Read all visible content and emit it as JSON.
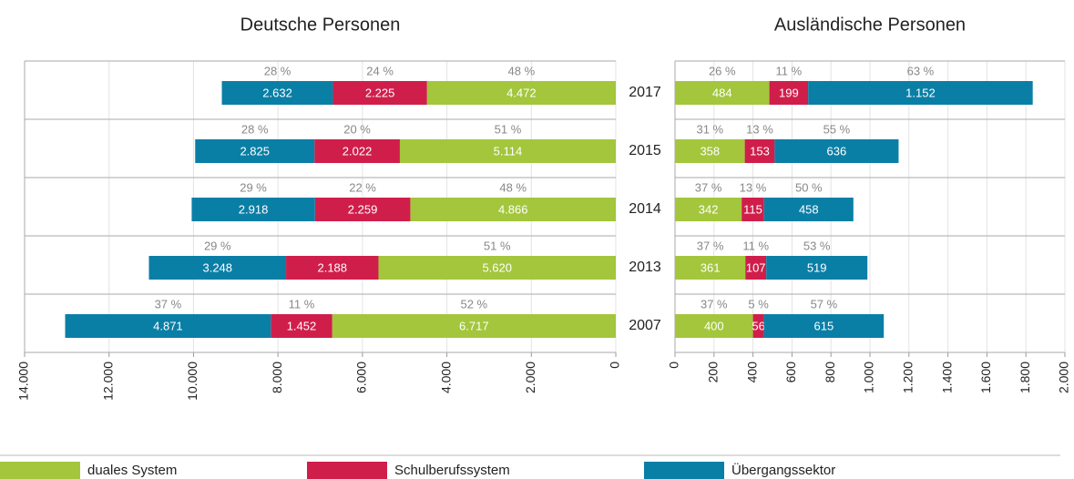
{
  "chart_data": [
    {
      "type": "stacked_barh",
      "title": "Deutsche Personen",
      "categories": [
        "2017",
        "2015",
        "2014",
        "2013",
        "2007"
      ],
      "x_reversed": true,
      "xlim": [
        0,
        14000
      ],
      "xticks": [
        0,
        {
          "value": 2000,
          "label": "2.000"
        },
        {
          "value": 4000,
          "label": "4.000"
        },
        {
          "value": 6000,
          "label": "6.000"
        },
        {
          "value": 8000,
          "label": "8.000"
        },
        {
          "value": 10000,
          "label": "10.000"
        },
        {
          "value": 12000,
          "label": "12.000"
        },
        {
          "value": 14000,
          "label": "14.000"
        }
      ],
      "grid": true,
      "series": [
        {
          "name": "duales System",
          "color": "#a3c63c",
          "values": [
            4472,
            5114,
            4866,
            5620,
            6717
          ],
          "value_labels": [
            "4.472",
            "5.114",
            "4.866",
            "5.620",
            "6.717"
          ],
          "share_labels": [
            "48 %",
            "51 %",
            "48 %",
            "51 %",
            "52 %"
          ]
        },
        {
          "name": "Schulberufssystem",
          "color": "#d01e4b",
          "values": [
            2225,
            2022,
            2259,
            2188,
            1452
          ],
          "value_labels": [
            "2.225",
            "2.022",
            "2.259",
            "2.188",
            "1.452"
          ],
          "share_labels": [
            "24 %",
            "20 %",
            "22 %",
            "",
            "11 %"
          ]
        },
        {
          "name": "Übergangssektor",
          "color": "#0a7fa6",
          "values": [
            2632,
            2825,
            2918,
            3248,
            4871
          ],
          "value_labels": [
            "2.632",
            "2.825",
            "2.918",
            "3.248",
            "4.871"
          ],
          "share_labels": [
            "28 %",
            "28 %",
            "29 %",
            "29 %",
            "37 %"
          ]
        }
      ]
    },
    {
      "type": "stacked_barh",
      "title": "Ausländische Personen",
      "x_reversed": false,
      "xlim": [
        0,
        2000
      ],
      "xticks": [
        0,
        200,
        400,
        600,
        800,
        {
          "value": 1000,
          "label": "1.000"
        },
        {
          "value": 1200,
          "label": "1.200"
        },
        {
          "value": 1400,
          "label": "1.400"
        },
        {
          "value": 1600,
          "label": "1.600"
        },
        {
          "value": 1800,
          "label": "1.800"
        },
        {
          "value": 2000,
          "label": "2.000"
        }
      ],
      "grid": true,
      "series": [
        {
          "name": "duales System",
          "color": "#a3c63c",
          "values": [
            484,
            358,
            342,
            361,
            400
          ],
          "share_labels": [
            "26 %",
            "31 %",
            "37 %",
            "37 %",
            "37 %"
          ]
        },
        {
          "name": "Schulberufssystem",
          "color": "#d01e4b",
          "values": [
            199,
            153,
            115,
            107,
            56
          ],
          "share_labels": [
            "11 %",
            "13 %",
            "13 %",
            "11 %",
            "5 %"
          ]
        },
        {
          "name": "Übergangssektor",
          "color": "#0a7fa6",
          "values": [
            1152,
            636,
            458,
            519,
            615
          ],
          "value_labels": [
            "1.152",
            "636",
            "458",
            "519",
            "615"
          ],
          "share_labels": [
            "63 %",
            "55 %",
            "50 %",
            "53 %",
            "57 %"
          ]
        }
      ]
    }
  ]
}
